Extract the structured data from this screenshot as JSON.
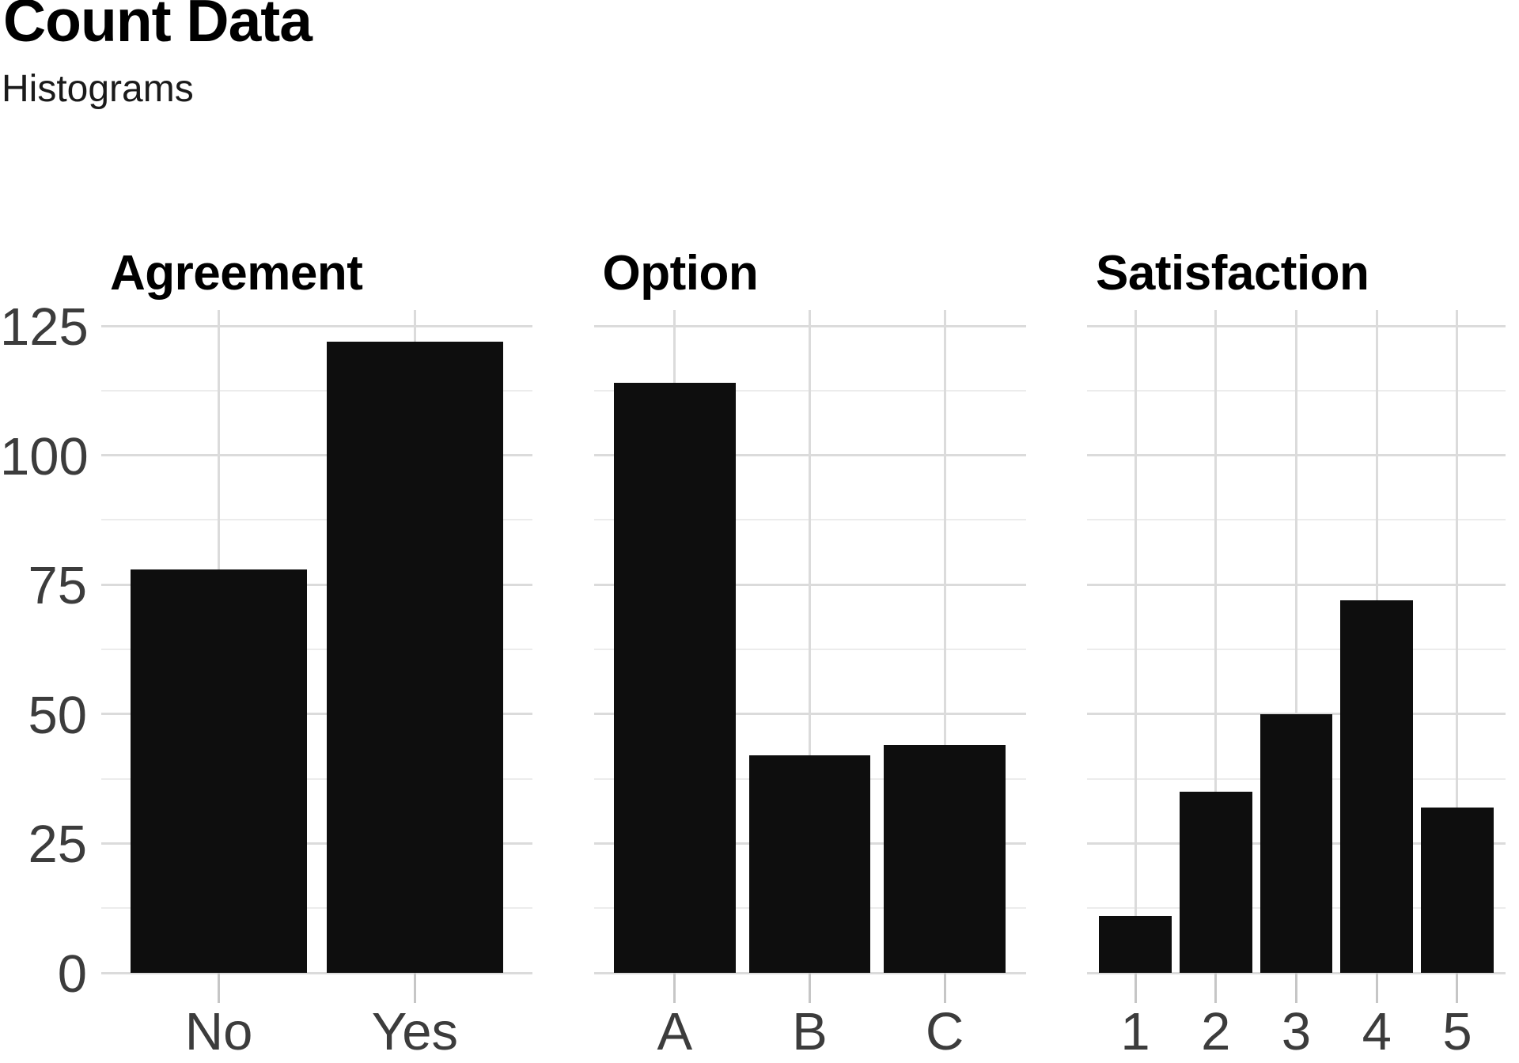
{
  "header": {
    "title": "Count Data",
    "subtitle": "Histograms"
  },
  "y_axis": {
    "tick_values": [
      0,
      25,
      50,
      75,
      100,
      125
    ],
    "tick_labels": [
      "0",
      "25",
      "50",
      "75",
      "100",
      "125"
    ],
    "minor_values": [
      12.5,
      37.5,
      62.5,
      87.5,
      112.5
    ]
  },
  "chart_data": [
    {
      "type": "bar",
      "title": "Agreement",
      "categories": [
        "No",
        "Yes"
      ],
      "values": [
        78,
        122
      ],
      "xlabel": "",
      "ylabel": "",
      "ylim": [
        0,
        128
      ],
      "grid": true,
      "legend": false
    },
    {
      "type": "bar",
      "title": "Option",
      "categories": [
        "A",
        "B",
        "C"
      ],
      "values": [
        114,
        42,
        44
      ],
      "xlabel": "",
      "ylabel": "",
      "ylim": [
        0,
        128
      ],
      "grid": true,
      "legend": false
    },
    {
      "type": "bar",
      "title": "Satisfaction",
      "categories": [
        "1",
        "2",
        "3",
        "4",
        "5"
      ],
      "values": [
        11,
        35,
        50,
        72,
        32
      ],
      "xlabel": "",
      "ylabel": "",
      "ylim": [
        0,
        128
      ],
      "grid": true,
      "legend": false
    }
  ],
  "colors": {
    "bar": "#0e0e0e",
    "grid_major": "#dbdbdb",
    "grid_minor": "#ececec",
    "tick": "#c6c6c6",
    "axis_text": "#3c3c3c",
    "title": "#000000",
    "subtitle": "#1a1a1a",
    "background": "#ffffff"
  }
}
